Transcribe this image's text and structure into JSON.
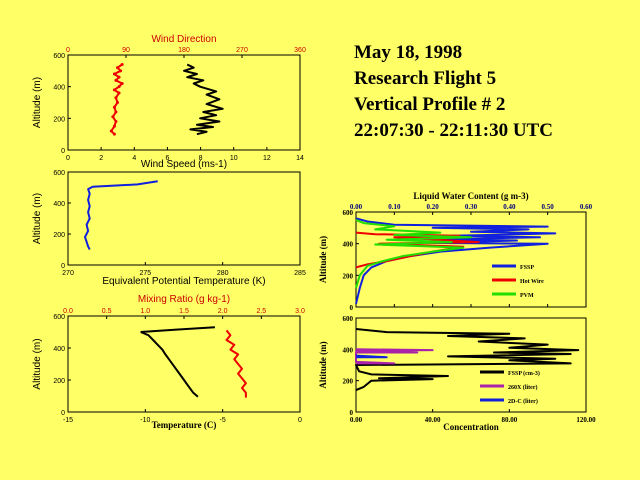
{
  "header": {
    "lines": [
      "May 18, 1998",
      "Research Flight 5",
      "Vertical Profile # 2",
      "22:07:30 - 22:11:30 UTC"
    ]
  },
  "colors": {
    "background": "#ffff66",
    "black": "#000000",
    "red": "#ee0000",
    "blue": "#1020dd",
    "green": "#22dd00",
    "magenta": "#aa22aa"
  },
  "chart_data": [
    {
      "id": "wind",
      "type": "line",
      "title": "Wind Direction",
      "xlabel": "Wind Speed (ms-1)",
      "ylabel": "Altitude (m)",
      "xlim": [
        0,
        15
      ],
      "x2lim": [
        0,
        360
      ],
      "ylim": [
        0,
        600
      ],
      "xticks": [
        "0",
        "2",
        "4",
        "6",
        "8",
        "10",
        "12",
        "14"
      ],
      "x2ticks": [
        "0",
        "90",
        "180",
        "270",
        "360"
      ],
      "yticks": [
        "0",
        "200",
        "400",
        "600"
      ],
      "series": [
        {
          "color": "#ee0000",
          "axis": "x",
          "points": [
            [
              3.0,
              100
            ],
            [
              2.8,
              120
            ],
            [
              3.0,
              150
            ],
            [
              3.1,
              180
            ],
            [
              2.9,
              210
            ],
            [
              3.1,
              240
            ],
            [
              3.0,
              270
            ],
            [
              3.2,
              300
            ],
            [
              3.1,
              330
            ],
            [
              3.3,
              360
            ],
            [
              3.0,
              380
            ],
            [
              3.3,
              400
            ],
            [
              3.5,
              420
            ],
            [
              3.1,
              440
            ],
            [
              3.3,
              460
            ],
            [
              3.0,
              480
            ],
            [
              3.4,
              500
            ],
            [
              3.2,
              520
            ],
            [
              3.5,
              540
            ]
          ]
        },
        {
          "color": "#000000",
          "axis": "x2",
          "points": [
            [
              200,
              100
            ],
            [
              215,
              115
            ],
            [
              190,
              130
            ],
            [
              225,
              145
            ],
            [
              200,
              160
            ],
            [
              235,
              180
            ],
            [
              205,
              200
            ],
            [
              230,
              220
            ],
            [
              210,
              240
            ],
            [
              240,
              260
            ],
            [
              215,
              290
            ],
            [
              235,
              320
            ],
            [
              215,
              350
            ],
            [
              230,
              370
            ],
            [
              205,
              400
            ],
            [
              195,
              420
            ],
            [
              210,
              440
            ],
            [
              185,
              460
            ],
            [
              200,
              480
            ],
            [
              180,
              500
            ],
            [
              195,
              520
            ],
            [
              185,
              540
            ]
          ]
        }
      ]
    },
    {
      "id": "theta_e",
      "type": "line",
      "xlabel": "Equivalent Potential Temperature (K)",
      "ylabel": "Altitude (m)",
      "xlim": [
        270,
        285
      ],
      "ylim": [
        0,
        600
      ],
      "xticks": [
        "270",
        "275",
        "280",
        "285"
      ],
      "yticks": [
        "0",
        "200",
        "400",
        "600"
      ],
      "series": [
        {
          "color": "#1020dd",
          "points": [
            [
              271.4,
              100
            ],
            [
              271.3,
              120
            ],
            [
              271.2,
              150
            ],
            [
              271.1,
              180
            ],
            [
              271.3,
              220
            ],
            [
              271.2,
              260
            ],
            [
              271.4,
              300
            ],
            [
              271.3,
              340
            ],
            [
              271.4,
              380
            ],
            [
              271.3,
              420
            ],
            [
              271.4,
              460
            ],
            [
              271.3,
              490
            ],
            [
              271.6,
              505
            ],
            [
              274.5,
              520
            ],
            [
              275.8,
              540
            ]
          ]
        }
      ]
    },
    {
      "id": "temp_mix",
      "type": "line",
      "title": "Mixing Ratio (g kg-1)",
      "xlabel": "Temperature (C)",
      "ylabel": "Altitude (m)",
      "xlim": [
        -15,
        0
      ],
      "x2lim": [
        0.0,
        3.0
      ],
      "ylim": [
        0,
        600
      ],
      "xticks": [
        "-15",
        "-10",
        "-5",
        "0"
      ],
      "x2ticks": [
        "0.0",
        "0.5",
        "1.0",
        "1.5",
        "2.0",
        "2.5",
        "3.0"
      ],
      "yticks": [
        "0",
        "200",
        "400",
        "600"
      ],
      "series": [
        {
          "color": "#000000",
          "axis": "x",
          "points": [
            [
              -10.3,
              500
            ],
            [
              -9.8,
              480
            ],
            [
              -9.5,
              450
            ],
            [
              -9.2,
              420
            ],
            [
              -8.9,
              390
            ],
            [
              -8.7,
              360
            ],
            [
              -8.4,
              320
            ],
            [
              -8.1,
              280
            ],
            [
              -7.8,
              240
            ],
            [
              -7.5,
              200
            ],
            [
              -7.2,
              160
            ],
            [
              -6.9,
              120
            ],
            [
              -6.6,
              95
            ]
          ]
        },
        {
          "color": "#ee0000",
          "axis": "x2",
          "points": [
            [
              2.05,
              510
            ],
            [
              2.1,
              480
            ],
            [
              2.05,
              450
            ],
            [
              2.15,
              420
            ],
            [
              2.1,
              390
            ],
            [
              2.2,
              360
            ],
            [
              2.15,
              330
            ],
            [
              2.2,
              300
            ],
            [
              2.25,
              270
            ],
            [
              2.2,
              240
            ],
            [
              2.25,
              210
            ],
            [
              2.3,
              180
            ],
            [
              2.25,
              150
            ],
            [
              2.3,
              120
            ],
            [
              2.3,
              90
            ]
          ]
        },
        {
          "color": "#000000",
          "axis": "connector",
          "points": [
            [
              -10.3,
              500
            ],
            [
              -8.0,
              515
            ],
            [
              -5.5,
              530
            ]
          ]
        }
      ]
    },
    {
      "id": "lwc",
      "type": "line",
      "title": "Liquid Water Content (g m-3)",
      "ylabel": "Altitude (m)",
      "xlim": [
        0,
        0.6
      ],
      "ylim": [
        0,
        600
      ],
      "xticks": [
        "0.00",
        "0.10",
        "0.20",
        "0.30",
        "0.40",
        "0.50",
        "0.60"
      ],
      "yticks": [
        "0",
        "200",
        "400",
        "600"
      ],
      "legend": {
        "position": "right",
        "entries": [
          {
            "label": "FSSP",
            "color": "#1020dd"
          },
          {
            "label": "Hot Wire",
            "color": "#ee0000"
          },
          {
            "label": "PVM",
            "color": "#22dd00"
          }
        ]
      },
      "series": [
        {
          "name": "FSSP",
          "color": "#1020dd",
          "points": [
            [
              0.0,
              20
            ],
            [
              0.01,
              120
            ],
            [
              0.02,
              200
            ],
            [
              0.04,
              250
            ],
            [
              0.08,
              290
            ],
            [
              0.14,
              320
            ],
            [
              0.22,
              350
            ],
            [
              0.35,
              375
            ],
            [
              0.5,
              400
            ],
            [
              0.18,
              405
            ],
            [
              0.42,
              420
            ],
            [
              0.22,
              428
            ],
            [
              0.48,
              440
            ],
            [
              0.25,
              450
            ],
            [
              0.52,
              465
            ],
            [
              0.3,
              475
            ],
            [
              0.45,
              490
            ],
            [
              0.2,
              500
            ],
            [
              0.5,
              508
            ],
            [
              0.1,
              520
            ],
            [
              0.03,
              540
            ],
            [
              0.0,
              560
            ]
          ]
        },
        {
          "name": "Hot Wire",
          "color": "#ee0000",
          "points": [
            [
              0.0,
              250
            ],
            [
              0.03,
              270
            ],
            [
              0.08,
              290
            ],
            [
              0.14,
              320
            ],
            [
              0.2,
              350
            ],
            [
              0.28,
              380
            ],
            [
              0.06,
              400
            ],
            [
              0.32,
              410
            ],
            [
              0.1,
              440
            ],
            [
              0.27,
              450
            ],
            [
              0.05,
              460
            ],
            [
              0.0,
              470
            ]
          ]
        },
        {
          "name": "PVM",
          "color": "#22dd00",
          "points": [
            [
              0.0,
              120
            ],
            [
              0.01,
              200
            ],
            [
              0.03,
              260
            ],
            [
              0.07,
              290
            ],
            [
              0.12,
              320
            ],
            [
              0.2,
              350
            ],
            [
              0.28,
              375
            ],
            [
              0.05,
              395
            ],
            [
              0.25,
              410
            ],
            [
              0.08,
              425
            ],
            [
              0.3,
              440
            ],
            [
              0.1,
              455
            ],
            [
              0.22,
              470
            ],
            [
              0.05,
              490
            ],
            [
              0.1,
              510
            ],
            [
              0.02,
              530
            ],
            [
              0.0,
              550
            ]
          ]
        }
      ]
    },
    {
      "id": "concentration",
      "type": "line",
      "xlabel": "Concentration",
      "ylabel": "Altitude (m)",
      "xlim": [
        0,
        150
      ],
      "ylim": [
        0,
        600
      ],
      "xticks": [
        "0.00",
        "40.00",
        "80.00",
        "120.00"
      ],
      "yticks": [
        "0",
        "200",
        "400",
        "600"
      ],
      "legend": {
        "position": "right",
        "entries": [
          {
            "label": "FSSP (cm-3)",
            "color": "#000000"
          },
          {
            "label": "260X (liter)",
            "color": "#aa22aa"
          },
          {
            "label": "2D-C (liter)",
            "color": "#1020dd"
          }
        ]
      },
      "series": [
        {
          "name": "FSSP (cm-3)",
          "color": "#000000",
          "points": [
            [
              0,
              140
            ],
            [
              5,
              160
            ],
            [
              10,
              200
            ],
            [
              50,
              210
            ],
            [
              15,
              215
            ],
            [
              60,
              230
            ],
            [
              10,
              240
            ],
            [
              2,
              260
            ],
            [
              0,
              300
            ],
            [
              140,
              310
            ],
            [
              100,
              330
            ],
            [
              130,
              340
            ],
            [
              60,
              355
            ],
            [
              140,
              370
            ],
            [
              90,
              380
            ],
            [
              145,
              395
            ],
            [
              100,
              410
            ],
            [
              125,
              430
            ],
            [
              80,
              450
            ],
            [
              110,
              470
            ],
            [
              60,
              485
            ],
            [
              100,
              500
            ],
            [
              20,
              510
            ],
            [
              0,
              530
            ]
          ]
        },
        {
          "name": "260X (liter)",
          "color": "#aa22aa",
          "points": [
            [
              0,
              310
            ],
            [
              25,
              310
            ],
            [
              0,
              320
            ],
            [
              0,
              380
            ],
            [
              40,
              380
            ],
            [
              0,
              390
            ],
            [
              50,
              395
            ],
            [
              0,
              400
            ]
          ]
        },
        {
          "name": "2D-C (liter)",
          "color": "#1020dd",
          "points": [
            [
              0,
              350
            ],
            [
              20,
              350
            ],
            [
              0,
              360
            ]
          ]
        }
      ]
    }
  ]
}
